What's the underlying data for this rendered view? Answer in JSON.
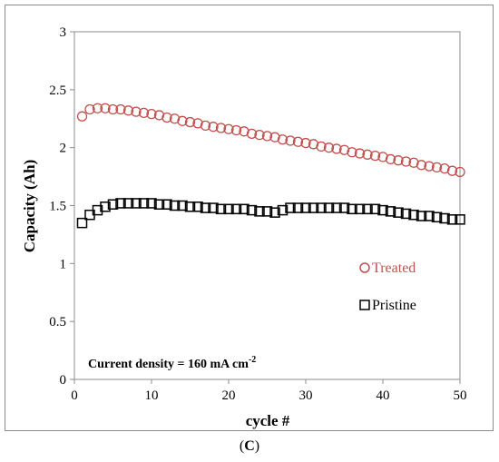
{
  "figure": {
    "panel_label_open": "(",
    "panel_label_letter": "C",
    "panel_label_close": ")"
  },
  "chart_data": {
    "type": "scatter",
    "xlabel": "cycle #",
    "ylabel": "Capacity (Ah)",
    "xlim": [
      0,
      50
    ],
    "ylim": [
      0,
      3
    ],
    "xticks": [
      0,
      10,
      20,
      30,
      40,
      50
    ],
    "yticks": [
      0,
      0.5,
      1,
      1.5,
      2,
      2.5,
      3
    ],
    "ytick_labels": [
      "0",
      "0.5",
      "1",
      "1.5",
      "2",
      "2.5",
      "3"
    ],
    "grid": false,
    "annotation": {
      "text": "Current density = 160 mA cm",
      "superscript": "-2"
    },
    "series": [
      {
        "name": "Treated",
        "marker": "circle",
        "color": "#c0504d",
        "x": [
          1,
          2,
          3,
          4,
          5,
          6,
          7,
          8,
          9,
          10,
          11,
          12,
          13,
          14,
          15,
          16,
          17,
          18,
          19,
          20,
          21,
          22,
          23,
          24,
          25,
          26,
          27,
          28,
          29,
          30,
          31,
          32,
          33,
          34,
          35,
          36,
          37,
          38,
          39,
          40,
          41,
          42,
          43,
          44,
          45,
          46,
          47,
          48,
          49,
          50
        ],
        "values": [
          2.27,
          2.33,
          2.34,
          2.34,
          2.33,
          2.33,
          2.32,
          2.31,
          2.3,
          2.29,
          2.28,
          2.26,
          2.25,
          2.23,
          2.22,
          2.21,
          2.19,
          2.18,
          2.17,
          2.16,
          2.15,
          2.14,
          2.12,
          2.11,
          2.1,
          2.09,
          2.07,
          2.06,
          2.05,
          2.04,
          2.03,
          2.01,
          2,
          1.99,
          1.98,
          1.96,
          1.95,
          1.94,
          1.93,
          1.92,
          1.9,
          1.89,
          1.88,
          1.87,
          1.85,
          1.84,
          1.83,
          1.82,
          1.8,
          1.79
        ]
      },
      {
        "name": "Pristine",
        "marker": "square",
        "color": "#000000",
        "x": [
          1,
          2,
          3,
          4,
          5,
          6,
          7,
          8,
          9,
          10,
          11,
          12,
          13,
          14,
          15,
          16,
          17,
          18,
          19,
          20,
          21,
          22,
          23,
          24,
          25,
          26,
          27,
          28,
          29,
          30,
          31,
          32,
          33,
          34,
          35,
          36,
          37,
          38,
          39,
          40,
          41,
          42,
          43,
          44,
          45,
          46,
          47,
          48,
          49,
          50
        ],
        "values": [
          1.35,
          1.42,
          1.46,
          1.49,
          1.51,
          1.52,
          1.52,
          1.52,
          1.52,
          1.52,
          1.51,
          1.51,
          1.5,
          1.5,
          1.49,
          1.49,
          1.48,
          1.48,
          1.47,
          1.47,
          1.47,
          1.47,
          1.46,
          1.45,
          1.45,
          1.44,
          1.46,
          1.48,
          1.48,
          1.48,
          1.48,
          1.48,
          1.48,
          1.48,
          1.48,
          1.47,
          1.47,
          1.47,
          1.47,
          1.46,
          1.45,
          1.44,
          1.43,
          1.42,
          1.41,
          1.41,
          1.4,
          1.39,
          1.38,
          1.38
        ]
      }
    ]
  }
}
